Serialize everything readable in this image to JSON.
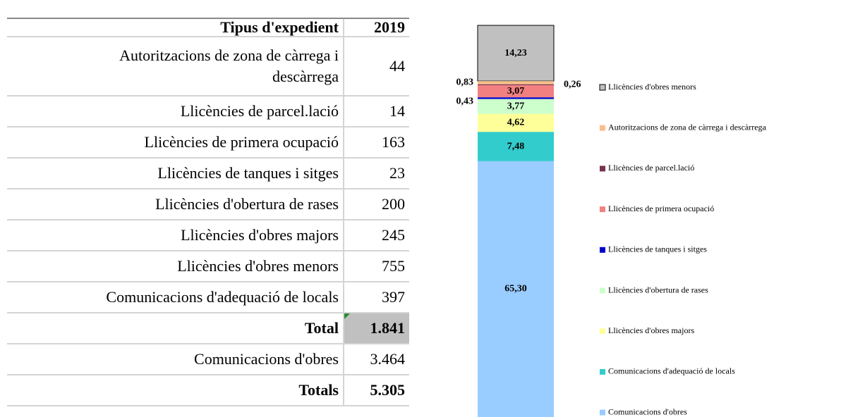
{
  "table": {
    "header": [
      "Tipus d'expedient",
      "2019"
    ],
    "rows": [
      [
        "Autoritzacions de zona de càrrega i descàrrega",
        "44"
      ],
      [
        "Llicències de parcel.lació",
        "14"
      ],
      [
        "Llicències de primera ocupació",
        "163"
      ],
      [
        "Llicències de tanques i sitges",
        "23"
      ],
      [
        "Llicències d'obertura de rases",
        "200"
      ],
      [
        "Llicències d'obres majors",
        "245"
      ],
      [
        "Llicències d'obres menors",
        "755"
      ],
      [
        "Comunicacions d'adequació de locals",
        "397"
      ],
      [
        "Total",
        "1.841"
      ],
      [
        "Comunicacions d'obres",
        "3.464"
      ],
      [
        "Totals",
        "5.305"
      ]
    ]
  },
  "chart_data": {
    "type": "stacked_bar",
    "series": [
      {
        "name": "Llicències d'obres menors",
        "color": "#c0c0c0",
        "values": [
          14.23
        ],
        "value_labels": [
          "14,23"
        ]
      },
      {
        "name": "Autoritzacions de zona de càrrega i descàrrega",
        "color": "#f7c08a",
        "values": [
          0.83
        ],
        "value_labels": [
          "0,83"
        ]
      },
      {
        "name": "Llicències de parcel.lació",
        "color": "#7a3050",
        "values": [
          0.26
        ],
        "value_labels": [
          "0,26"
        ]
      },
      {
        "name": "Llicències de primera ocupació",
        "color": "#f28080",
        "values": [
          3.07
        ],
        "value_labels": [
          "3,07"
        ]
      },
      {
        "name": "Llicències de tanques i sitges",
        "color": "#0000cc",
        "values": [
          0.43
        ],
        "value_labels": [
          "0,43"
        ]
      },
      {
        "name": "Llicències d'obertura de rases",
        "color": "#ccffcc",
        "values": [
          3.77
        ],
        "value_labels": [
          "3,77"
        ]
      },
      {
        "name": "Llicències d'obres majors",
        "color": "#ffff99",
        "values": [
          4.62
        ],
        "value_labels": [
          "4,62"
        ]
      },
      {
        "name": "Comunicacions d'adequació de locals",
        "color": "#33cccc",
        "values": [
          7.48
        ],
        "value_labels": [
          "7,48"
        ]
      },
      {
        "name": "Comunicacions d'obres",
        "color": "#99ccff",
        "values": [
          65.3
        ],
        "value_labels": [
          "65,30"
        ]
      }
    ]
  }
}
